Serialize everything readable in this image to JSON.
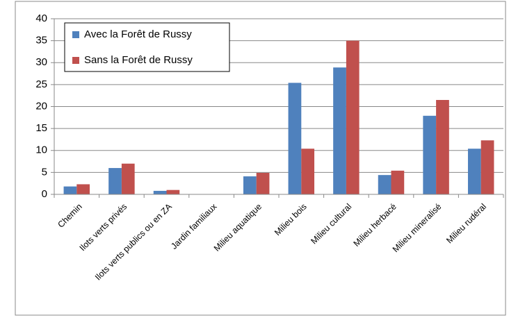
{
  "chart_data": {
    "type": "bar",
    "categories": [
      "Chemin",
      "Ilots verts privés",
      "Ilots verts publics ou en ZA",
      "Jardin familiaux",
      "Milieu aquatique",
      "Milieu bois",
      "Milieu cultural",
      "Milieu herbacé",
      "Milieu mineralisé",
      "Milieu rudéral"
    ],
    "series": [
      {
        "name": "Avec la Forêt de Russy",
        "color": "#4f81bd",
        "values": [
          1.8,
          6,
          0.8,
          0,
          4.1,
          25.4,
          28.9,
          4.4,
          17.9,
          10.4
        ]
      },
      {
        "name": "Sans la Forêt de Russy",
        "color": "#c0504d",
        "values": [
          2.3,
          7,
          1,
          0,
          4.9,
          10.4,
          35,
          5.4,
          21.5,
          12.3
        ]
      }
    ],
    "ylim": [
      0,
      40
    ],
    "yticks": [
      0,
      5,
      10,
      15,
      20,
      25,
      30,
      35,
      40
    ],
    "grid": true,
    "legend": "top-left"
  }
}
